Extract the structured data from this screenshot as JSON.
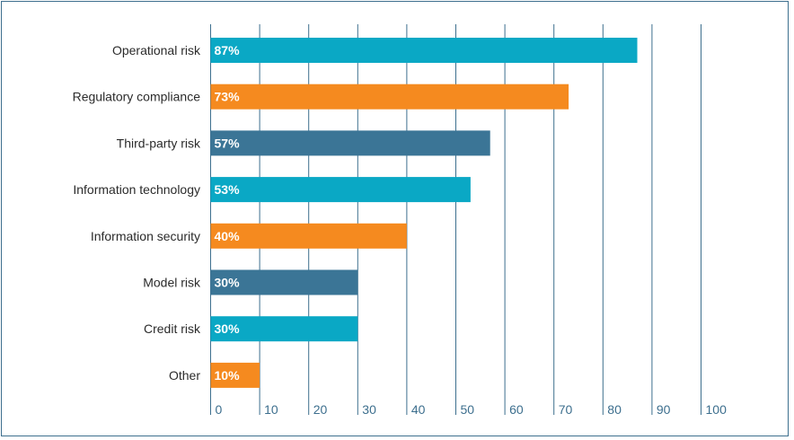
{
  "chart_data": {
    "type": "bar",
    "orientation": "horizontal",
    "categories": [
      "Operational risk",
      "Regulatory compliance",
      "Third-party risk",
      "Information technology",
      "Information security",
      "Model risk",
      "Credit risk",
      "Other"
    ],
    "values": [
      87,
      73,
      57,
      53,
      40,
      30,
      30,
      10
    ],
    "value_labels": [
      "87%",
      "73%",
      "57%",
      "53%",
      "40%",
      "30%",
      "30%",
      "10%"
    ],
    "bar_colors": [
      "#0aa8c5",
      "#f58a1f",
      "#3b7596",
      "#0aa8c5",
      "#f58a1f",
      "#3b7596",
      "#0aa8c5",
      "#f58a1f"
    ],
    "xlim": [
      0,
      100
    ],
    "xticks": [
      0,
      10,
      20,
      30,
      40,
      50,
      60,
      70,
      80,
      90,
      100
    ],
    "xtick_labels": [
      "0",
      "10",
      "20",
      "30",
      "40",
      "50",
      "60",
      "70",
      "80",
      "90",
      "100"
    ],
    "grid": "vertical",
    "axis_color": "#3d6f8e",
    "title": "",
    "xlabel": "",
    "ylabel": ""
  }
}
